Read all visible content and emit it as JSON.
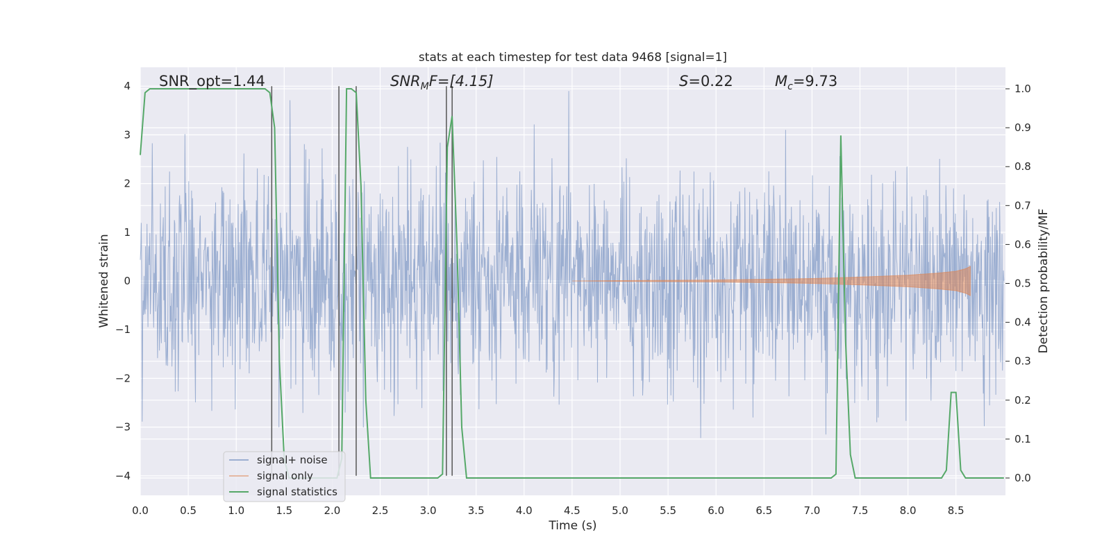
{
  "chart_data": {
    "type": "line",
    "title": "stats at each timestep for test data 9468 [signal=1]",
    "xlabel": "Time (s)",
    "ylabel_left": "Whitened strain",
    "ylabel_right": "Detection probability/MF",
    "xlim": [
      0.0,
      9.0
    ],
    "ylim_left": [
      -4.4,
      4.4
    ],
    "ylim_right": [
      -0.05,
      1.05
    ],
    "x_ticks": [
      "0.0",
      "0.5",
      "1.0",
      "1.5",
      "2.0",
      "2.5",
      "3.0",
      "3.5",
      "4.0",
      "4.5",
      "5.0",
      "5.5",
      "6.0",
      "6.5",
      "7.0",
      "7.5",
      "8.0",
      "8.5"
    ],
    "y_ticks_left": [
      "−4",
      "−3",
      "−2",
      "−1",
      "0",
      "1",
      "2",
      "3",
      "4"
    ],
    "y_ticks_right": [
      "0.0",
      "0.1",
      "0.2",
      "0.3",
      "0.4",
      "0.5",
      "0.6",
      "0.7",
      "0.8",
      "0.9",
      "1.0"
    ],
    "grid": true,
    "legend_position": "bottom-left",
    "annotations": [
      {
        "id": "snr-opt",
        "text": "SNR_opt=1.44"
      },
      {
        "id": "snr-mf",
        "prefix": "SNR",
        "sub": "M",
        "suffix": "F=[4.15]"
      },
      {
        "id": "s-stat",
        "prefix": "S",
        "suffix": "=0.22"
      },
      {
        "id": "mc",
        "prefix": "M",
        "sub": "c",
        "suffix": "=9.73"
      }
    ],
    "series": [
      {
        "name": "signal+ noise",
        "axis": "left",
        "color": "#4c72b0",
        "kind": "noise, approx. ±1.6 core with peaks to ±3.9"
      },
      {
        "name": "signal only",
        "axis": "left",
        "color": "#dd8452",
        "kind": "chirp from t≈4.5 s to t≈8.65 s, peak amplitude ≈0.3",
        "envelope": [
          [
            4.5,
            0.0
          ],
          [
            6.0,
            0.02
          ],
          [
            7.0,
            0.05
          ],
          [
            7.5,
            0.08
          ],
          [
            8.0,
            0.12
          ],
          [
            8.3,
            0.16
          ],
          [
            8.5,
            0.2
          ],
          [
            8.6,
            0.25
          ],
          [
            8.65,
            0.3
          ]
        ]
      },
      {
        "name": "signal statistics",
        "axis": "right",
        "color": "#55a868",
        "points": [
          [
            0.0,
            0.83
          ],
          [
            0.05,
            0.99
          ],
          [
            0.1,
            1.0
          ],
          [
            1.3,
            1.0
          ],
          [
            1.35,
            0.99
          ],
          [
            1.4,
            0.9
          ],
          [
            1.45,
            0.3
          ],
          [
            1.5,
            0.05
          ],
          [
            1.55,
            0.0
          ],
          [
            2.05,
            0.0
          ],
          [
            2.1,
            0.05
          ],
          [
            2.15,
            1.0
          ],
          [
            2.2,
            1.0
          ],
          [
            2.25,
            0.99
          ],
          [
            2.3,
            0.75
          ],
          [
            2.35,
            0.2
          ],
          [
            2.4,
            0.0
          ],
          [
            2.45,
            0.0
          ],
          [
            3.1,
            0.0
          ],
          [
            3.15,
            0.01
          ],
          [
            3.2,
            0.85
          ],
          [
            3.25,
            0.93
          ],
          [
            3.3,
            0.6
          ],
          [
            3.35,
            0.13
          ],
          [
            3.4,
            0.0
          ],
          [
            3.6,
            0.0
          ],
          [
            7.2,
            0.0
          ],
          [
            7.25,
            0.01
          ],
          [
            7.3,
            0.88
          ],
          [
            7.35,
            0.35
          ],
          [
            7.4,
            0.06
          ],
          [
            7.45,
            0.0
          ],
          [
            8.35,
            0.0
          ],
          [
            8.4,
            0.02
          ],
          [
            8.45,
            0.22
          ],
          [
            8.5,
            0.22
          ],
          [
            8.55,
            0.02
          ],
          [
            8.6,
            0.0
          ],
          [
            9.0,
            0.0
          ]
        ]
      }
    ],
    "vertical_markers": [
      1.37,
      2.07,
      2.25,
      3.19,
      3.25
    ]
  }
}
